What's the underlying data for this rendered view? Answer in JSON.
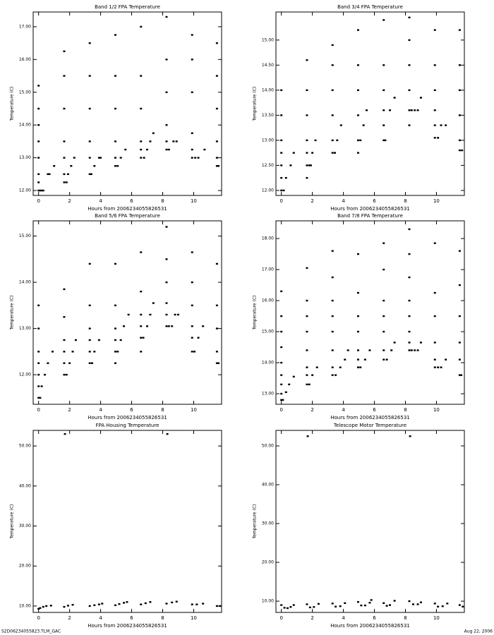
{
  "chart_data": [
    {
      "type": "scatter",
      "title": "Band 1/2 FPA Temperature",
      "x_label": "Hours from 2006234055826531",
      "y_label": "Temperature (C)",
      "color": "#000000",
      "xlim": [
        -0.35,
        11.8
      ],
      "xticks": [
        0,
        2,
        4,
        6,
        8,
        10
      ],
      "ylim": [
        11.85,
        17.45
      ],
      "yticks": [
        {
          "value": 12,
          "label": "12.00"
        },
        {
          "value": 13,
          "label": "13.00"
        },
        {
          "value": 14,
          "label": "14.00"
        },
        {
          "value": 15,
          "label": "15.00"
        },
        {
          "value": 16,
          "label": "16.00"
        },
        {
          "value": 17,
          "label": "17.00"
        }
      ],
      "x": [
        0,
        0,
        0,
        0,
        0,
        0,
        0,
        0,
        0.1,
        0.2,
        0.3,
        0.6,
        0.7,
        1.0,
        1.65,
        1.65,
        1.65,
        1.65,
        1.65,
        1.65,
        1.65,
        1.8,
        1.9,
        2.1,
        2.3,
        3.3,
        3.3,
        3.3,
        3.3,
        3.3,
        3.3,
        3.4,
        3.6,
        3.9,
        4.0,
        4.95,
        4.95,
        4.95,
        4.95,
        4.95,
        4.95,
        5.1,
        5.3,
        5.6,
        6.6,
        6.6,
        6.6,
        6.6,
        6.6,
        6.6,
        6.8,
        7.0,
        7.2,
        7.4,
        8.25,
        8.25,
        8.25,
        8.25,
        8.25,
        8.25,
        8.4,
        8.7,
        8.9,
        9.9,
        9.9,
        9.9,
        9.9,
        9.9,
        9.9,
        10.1,
        10.3,
        10.7,
        11.5,
        11.5,
        11.5,
        11.5,
        11.5,
        11.5,
        11.6
      ],
      "y": [
        12.0,
        12.25,
        12.5,
        13.0,
        13.5,
        14.0,
        14.5,
        15.2,
        12.0,
        12.0,
        12.0,
        12.5,
        12.5,
        12.75,
        12.25,
        12.5,
        13.0,
        13.5,
        14.5,
        15.5,
        16.25,
        12.25,
        12.5,
        12.75,
        13.0,
        12.5,
        13.0,
        13.5,
        14.5,
        15.5,
        16.5,
        12.5,
        12.75,
        13.0,
        13.0,
        12.75,
        13.0,
        13.5,
        14.5,
        15.5,
        16.75,
        12.75,
        13.0,
        13.25,
        13.0,
        13.25,
        13.5,
        14.5,
        15.5,
        17.0,
        13.0,
        13.25,
        13.5,
        13.75,
        13.25,
        13.5,
        14.0,
        15.0,
        16.0,
        17.3,
        13.25,
        13.5,
        13.5,
        13.0,
        13.25,
        13.75,
        15.0,
        16.0,
        16.75,
        13.0,
        13.0,
        13.25,
        12.75,
        13.0,
        13.5,
        14.5,
        15.5,
        16.5,
        12.75
      ]
    },
    {
      "type": "scatter",
      "title": "Band 3/4 FPA Temperature",
      "x_label": "Hours from 2006234055826531",
      "y_label": "Temperature (C)",
      "color": "#000000",
      "xlim": [
        -0.35,
        11.8
      ],
      "xticks": [
        0,
        2,
        4,
        6,
        8,
        10
      ],
      "ylim": [
        11.9,
        15.56
      ],
      "yticks": [
        {
          "value": 12,
          "label": "12.00"
        },
        {
          "value": 12.5,
          "label": "12.50"
        },
        {
          "value": 13,
          "label": "13.00"
        },
        {
          "value": 13.5,
          "label": "13.50"
        },
        {
          "value": 14,
          "label": "14.00"
        },
        {
          "value": 14.5,
          "label": "14.50"
        },
        {
          "value": 15,
          "label": "15.00"
        }
      ],
      "x": [
        0,
        0,
        0,
        0,
        0,
        0,
        0,
        0.15,
        0.3,
        0.6,
        0.8,
        1.65,
        1.65,
        1.65,
        1.65,
        1.65,
        1.65,
        1.65,
        1.8,
        1.9,
        2.0,
        2.2,
        3.3,
        3.3,
        3.3,
        3.3,
        3.3,
        3.3,
        3.45,
        3.6,
        3.85,
        4.95,
        4.95,
        4.95,
        4.95,
        4.95,
        4.95,
        5.1,
        5.3,
        5.5,
        6.6,
        6.6,
        6.6,
        6.6,
        6.6,
        6.6,
        6.7,
        7.0,
        7.3,
        8.25,
        8.25,
        8.25,
        8.25,
        8.25,
        8.25,
        8.4,
        8.6,
        8.8,
        9.0,
        9.9,
        9.9,
        9.9,
        9.9,
        9.9,
        9.9,
        10.1,
        10.3,
        10.6,
        11.5,
        11.5,
        11.5,
        11.5,
        11.5,
        11.5,
        11.65
      ],
      "y": [
        12.0,
        12.25,
        12.5,
        12.75,
        13.0,
        13.5,
        14.0,
        12.0,
        12.25,
        12.5,
        12.75,
        12.25,
        12.5,
        12.75,
        13.0,
        13.5,
        14.0,
        14.6,
        12.5,
        12.5,
        12.75,
        13.0,
        12.75,
        13.0,
        13.5,
        14.0,
        14.5,
        14.9,
        12.75,
        13.0,
        13.3,
        12.75,
        13.0,
        13.5,
        14.0,
        14.5,
        15.2,
        13.0,
        13.3,
        13.6,
        13.0,
        13.3,
        13.6,
        14.0,
        14.5,
        15.4,
        13.0,
        13.6,
        13.85,
        13.3,
        13.6,
        14.0,
        14.5,
        15.0,
        15.45,
        13.6,
        13.6,
        13.6,
        13.85,
        13.05,
        13.3,
        13.6,
        14.0,
        14.5,
        15.2,
        13.05,
        13.3,
        13.3,
        12.8,
        13.0,
        13.5,
        14.0,
        14.5,
        15.2,
        12.8
      ]
    },
    {
      "type": "scatter",
      "title": "Band 5/6 FPA Temperature",
      "x_label": "Hours from 2006234055826531",
      "y_label": "Temperature (C)",
      "color": "#000000",
      "xlim": [
        -0.35,
        11.8
      ],
      "xticks": [
        0,
        2,
        4,
        6,
        8,
        10
      ],
      "ylim": [
        11.36,
        15.33
      ],
      "yticks": [
        {
          "value": 12,
          "label": "12.00"
        },
        {
          "value": 13,
          "label": "13.00"
        },
        {
          "value": 14,
          "label": "14.00"
        },
        {
          "value": 15,
          "label": "15.00"
        }
      ],
      "x": [
        0,
        0,
        0,
        0,
        0,
        0,
        0,
        0.1,
        0.2,
        0.4,
        0.6,
        0.9,
        1.65,
        1.65,
        1.65,
        1.65,
        1.65,
        1.65,
        1.8,
        2.0,
        2.2,
        2.4,
        3.3,
        3.3,
        3.3,
        3.3,
        3.3,
        3.3,
        3.45,
        3.6,
        3.9,
        4.95,
        4.95,
        4.95,
        4.95,
        4.95,
        4.95,
        5.1,
        5.3,
        5.5,
        5.8,
        6.6,
        6.6,
        6.6,
        6.6,
        6.6,
        6.6,
        6.75,
        7.0,
        7.2,
        7.4,
        8.25,
        8.25,
        8.25,
        8.25,
        8.25,
        8.25,
        8.4,
        8.6,
        8.8,
        9.0,
        9.9,
        9.9,
        9.9,
        9.9,
        9.9,
        9.9,
        10.05,
        10.3,
        10.6,
        11.5,
        11.5,
        11.5,
        11.5,
        11.5,
        11.6
      ],
      "y": [
        11.5,
        11.75,
        12.0,
        12.25,
        12.5,
        13.0,
        13.5,
        11.5,
        11.75,
        12.0,
        12.25,
        12.5,
        12.0,
        12.25,
        12.5,
        12.75,
        13.25,
        13.85,
        12.0,
        12.25,
        12.5,
        12.75,
        12.25,
        12.5,
        12.75,
        13.0,
        13.5,
        14.4,
        12.25,
        12.5,
        12.75,
        12.25,
        12.5,
        12.75,
        13.0,
        13.5,
        14.4,
        12.5,
        12.75,
        13.05,
        13.3,
        12.5,
        12.8,
        13.05,
        13.3,
        13.8,
        14.65,
        12.8,
        13.05,
        13.3,
        13.55,
        13.05,
        13.3,
        13.55,
        14.0,
        14.5,
        15.2,
        13.05,
        13.05,
        13.3,
        13.3,
        12.5,
        12.8,
        13.05,
        13.5,
        14.0,
        14.65,
        12.5,
        12.8,
        13.05,
        12.25,
        12.5,
        13.0,
        13.5,
        14.4,
        12.25
      ]
    },
    {
      "type": "scatter",
      "title": "Band 7/8 FPA Temperature",
      "x_label": "Hours from 2006234055826531",
      "y_label": "Temperature (C)",
      "color": "#000000",
      "xlim": [
        -0.35,
        11.8
      ],
      "xticks": [
        0,
        2,
        4,
        6,
        8,
        10
      ],
      "ylim": [
        12.66,
        18.57
      ],
      "yticks": [
        {
          "value": 13,
          "label": "13.00"
        },
        {
          "value": 14,
          "label": "14.00"
        },
        {
          "value": 15,
          "label": "15.00"
        },
        {
          "value": 16,
          "label": "16.00"
        },
        {
          "value": 17,
          "label": "17.00"
        },
        {
          "value": 18,
          "label": "18.00"
        }
      ],
      "x": [
        0,
        0,
        0,
        0,
        0,
        0,
        0,
        0,
        0,
        0.1,
        0.3,
        0.5,
        0.8,
        1.65,
        1.65,
        1.65,
        1.65,
        1.65,
        1.65,
        1.65,
        1.65,
        1.8,
        2.0,
        2.3,
        3.3,
        3.3,
        3.3,
        3.3,
        3.3,
        3.3,
        3.3,
        3.3,
        3.5,
        3.8,
        4.1,
        4.3,
        4.95,
        4.95,
        4.95,
        4.95,
        4.95,
        4.95,
        4.95,
        5.1,
        5.4,
        5.7,
        6.6,
        6.6,
        6.6,
        6.6,
        6.6,
        6.6,
        6.6,
        6.8,
        7.1,
        7.3,
        8.25,
        8.25,
        8.25,
        8.25,
        8.25,
        8.25,
        8.25,
        8.25,
        8.4,
        8.6,
        8.8,
        9.0,
        9.9,
        9.9,
        9.9,
        9.9,
        9.9,
        9.9,
        10.1,
        10.3,
        10.6,
        11.5,
        11.5,
        11.5,
        11.5,
        11.5,
        11.5,
        11.6
      ],
      "y": [
        12.8,
        13.0,
        13.3,
        13.6,
        14.0,
        14.5,
        15.0,
        15.5,
        16.3,
        12.8,
        13.05,
        13.3,
        13.55,
        13.3,
        13.6,
        13.85,
        14.4,
        15.0,
        15.5,
        16.0,
        17.05,
        13.3,
        13.6,
        13.85,
        13.6,
        13.85,
        14.4,
        15.0,
        15.5,
        16.0,
        16.75,
        17.6,
        13.6,
        13.85,
        14.1,
        14.4,
        13.85,
        14.1,
        14.4,
        15.0,
        15.5,
        16.25,
        17.5,
        13.85,
        14.1,
        14.4,
        14.1,
        14.4,
        15.0,
        15.5,
        16.0,
        17.0,
        17.85,
        14.1,
        14.4,
        14.65,
        14.4,
        14.65,
        15.0,
        15.5,
        16.0,
        16.75,
        17.5,
        18.3,
        14.4,
        14.4,
        14.4,
        14.65,
        13.85,
        14.1,
        14.65,
        15.5,
        16.25,
        17.85,
        13.85,
        13.85,
        14.1,
        13.6,
        14.1,
        14.65,
        15.5,
        16.5,
        17.6,
        13.6
      ]
    },
    {
      "type": "scatter",
      "title": "FPA Housing Temperature",
      "x_label": "Hours from 2006234055826531",
      "y_label": "Temperature (C)",
      "color": "#000000",
      "xlim": [
        -0.35,
        11.8
      ],
      "xticks": [
        0,
        2,
        4,
        6,
        8,
        10
      ],
      "ylim": [
        8.4,
        53.9
      ],
      "yticks": [
        {
          "value": 10,
          "label": "10.00"
        },
        {
          "value": 20,
          "label": "20.00"
        },
        {
          "value": 30,
          "label": "30.00"
        },
        {
          "value": 40,
          "label": "40.00"
        },
        {
          "value": 50,
          "label": "50.00"
        }
      ],
      "x": [
        0,
        0.1,
        0.3,
        0.5,
        0.8,
        1.7,
        1.65,
        1.9,
        2.2,
        3.3,
        3.6,
        3.9,
        4.1,
        4.95,
        5.2,
        5.5,
        5.7,
        6.6,
        6.9,
        7.2,
        8.25,
        8.3,
        8.6,
        8.9,
        9.9,
        10.2,
        10.6,
        11.5,
        11.7
      ],
      "y": [
        9.3,
        9.5,
        9.8,
        10.0,
        10.1,
        53.0,
        9.8,
        10.1,
        10.3,
        10.0,
        10.2,
        10.4,
        10.6,
        10.2,
        10.5,
        10.8,
        11.0,
        10.4,
        10.7,
        11.0,
        10.6,
        53.0,
        10.9,
        11.1,
        10.4,
        10.4,
        10.6,
        10.0,
        10.0
      ]
    },
    {
      "type": "scatter",
      "title": "Telescope Motor Temperature",
      "x_label": "Hours from 2006234055826531",
      "y_label": "Temperature (C)",
      "color": "#000000",
      "xlim": [
        -0.35,
        11.8
      ],
      "xticks": [
        0,
        2,
        4,
        6,
        8,
        10
      ],
      "ylim": [
        7.1,
        54.0
      ],
      "yticks": [
        {
          "value": 10,
          "label": "10.00"
        },
        {
          "value": 20,
          "label": "20.00"
        },
        {
          "value": 30,
          "label": "30.00"
        },
        {
          "value": 40,
          "label": "40.00"
        },
        {
          "value": 50,
          "label": "50.00"
        }
      ],
      "x": [
        0,
        0.2,
        0.4,
        0.6,
        0.8,
        1.7,
        1.65,
        1.85,
        2.1,
        2.4,
        3.3,
        3.5,
        3.8,
        4.1,
        4.95,
        5.15,
        5.4,
        5.7,
        5.8,
        6.6,
        6.8,
        7.0,
        7.3,
        8.25,
        8.3,
        8.5,
        8.8,
        9.0,
        9.9,
        10.1,
        10.4,
        10.7,
        11.5,
        11.7
      ],
      "y": [
        9.0,
        8.3,
        8.2,
        8.5,
        9.0,
        52.5,
        9.2,
        8.4,
        8.5,
        9.3,
        9.4,
        8.6,
        8.7,
        9.5,
        9.8,
        8.9,
        8.9,
        9.6,
        10.3,
        9.5,
        8.8,
        9.0,
        10.1,
        10.0,
        52.5,
        9.2,
        9.2,
        9.7,
        9.4,
        8.6,
        8.7,
        9.4,
        9.0,
        8.6
      ]
    }
  ],
  "footer": {
    "left": "S2D06234055823.TLM_GAC",
    "right": "Aug 22, 2006"
  }
}
